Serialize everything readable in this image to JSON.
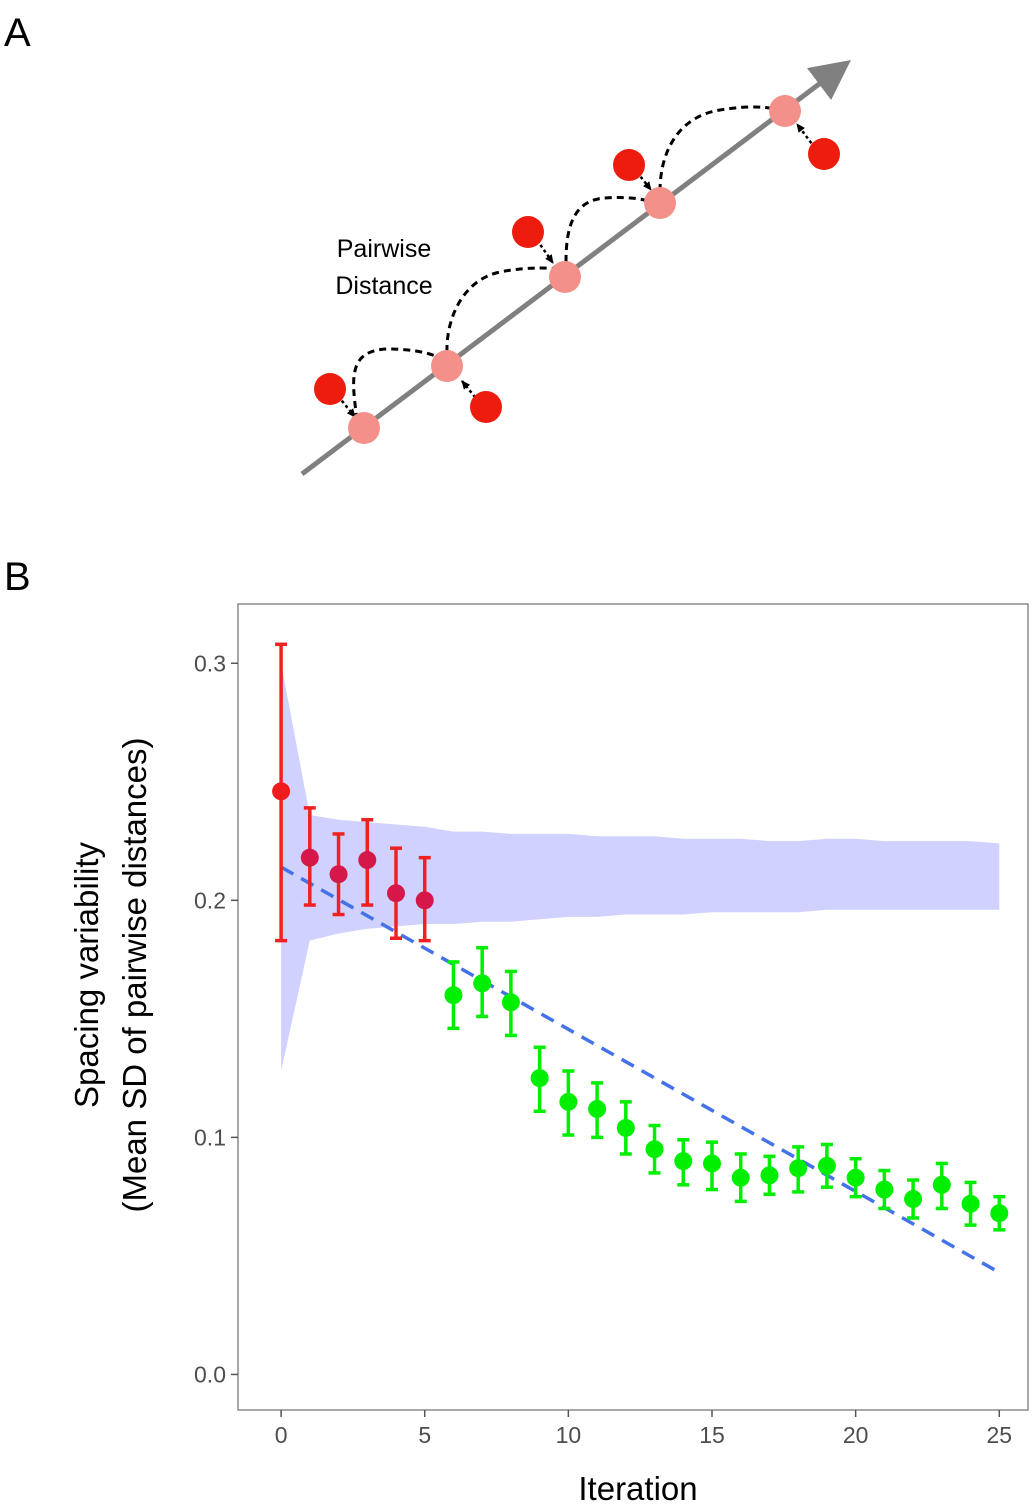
{
  "panel_a": {
    "letter": "A",
    "annotation_line1": "Pairwise",
    "annotation_line2": "Distance",
    "colors": {
      "axis_arrow": "#808080",
      "observed_point": "#ee1c0e",
      "projected_point": "#f4908a"
    }
  },
  "panel_b": {
    "letter": "B"
  },
  "chart_data": {
    "type": "scatter",
    "title": "",
    "xlabel": "Iteration",
    "ylabel_line1": "Spacing variability",
    "ylabel_line2": "(Mean SD of pairwise distances)",
    "xlim": [
      -1.5,
      26
    ],
    "ylim": [
      -0.015,
      0.325
    ],
    "xticks": [
      0,
      5,
      10,
      15,
      20,
      25
    ],
    "yticks": [
      0.0,
      0.1,
      0.2,
      0.3
    ],
    "ytick_labels": [
      "0.0",
      "0.1",
      "0.2",
      "0.3"
    ],
    "grid": false,
    "legend": "none",
    "colors": {
      "first_point": "#ee1c1c",
      "early_points": "#d6174a",
      "early_error": "#ee2222",
      "late_points": "#00ee00",
      "trend_line": "#4472e8",
      "band_fill": "#ccccff"
    },
    "series": [
      {
        "x": [
          0,
          1,
          2,
          3,
          4,
          5,
          6,
          7,
          8,
          9,
          10,
          11,
          12,
          13,
          14,
          15,
          16,
          17,
          18,
          19,
          20,
          21,
          22,
          23,
          24,
          25
        ],
        "y": [
          0.246,
          0.218,
          0.211,
          0.217,
          0.203,
          0.2,
          0.16,
          0.165,
          0.157,
          0.125,
          0.115,
          0.112,
          0.104,
          0.095,
          0.09,
          0.089,
          0.083,
          0.084,
          0.087,
          0.088,
          0.083,
          0.078,
          0.074,
          0.08,
          0.072,
          0.068
        ],
        "err_low": [
          0.183,
          0.198,
          0.194,
          0.198,
          0.184,
          0.183,
          0.146,
          0.151,
          0.143,
          0.111,
          0.101,
          0.1,
          0.093,
          0.085,
          0.08,
          0.078,
          0.073,
          0.076,
          0.077,
          0.079,
          0.075,
          0.07,
          0.066,
          0.07,
          0.063,
          0.061
        ],
        "err_high": [
          0.308,
          0.239,
          0.228,
          0.234,
          0.222,
          0.218,
          0.174,
          0.18,
          0.17,
          0.138,
          0.128,
          0.123,
          0.115,
          0.105,
          0.099,
          0.098,
          0.093,
          0.092,
          0.096,
          0.097,
          0.091,
          0.086,
          0.082,
          0.089,
          0.081,
          0.075
        ]
      }
    ],
    "band": {
      "x": [
        0,
        1,
        2,
        3,
        4,
        5,
        6,
        7,
        8,
        9,
        10,
        11,
        12,
        13,
        14,
        15,
        16,
        17,
        18,
        19,
        20,
        21,
        22,
        23,
        24,
        25
      ],
      "low": [
        0.128,
        0.183,
        0.186,
        0.188,
        0.189,
        0.19,
        0.19,
        0.191,
        0.191,
        0.192,
        0.193,
        0.193,
        0.194,
        0.194,
        0.194,
        0.195,
        0.195,
        0.195,
        0.195,
        0.196,
        0.196,
        0.196,
        0.196,
        0.196,
        0.196,
        0.196
      ],
      "high": [
        0.3,
        0.236,
        0.234,
        0.233,
        0.232,
        0.231,
        0.229,
        0.229,
        0.228,
        0.228,
        0.228,
        0.227,
        0.227,
        0.227,
        0.226,
        0.226,
        0.226,
        0.225,
        0.225,
        0.226,
        0.226,
        0.225,
        0.225,
        0.225,
        0.225,
        0.224
      ]
    },
    "trend_line": {
      "x": [
        0,
        25
      ],
      "y": [
        0.214,
        0.043
      ]
    }
  }
}
